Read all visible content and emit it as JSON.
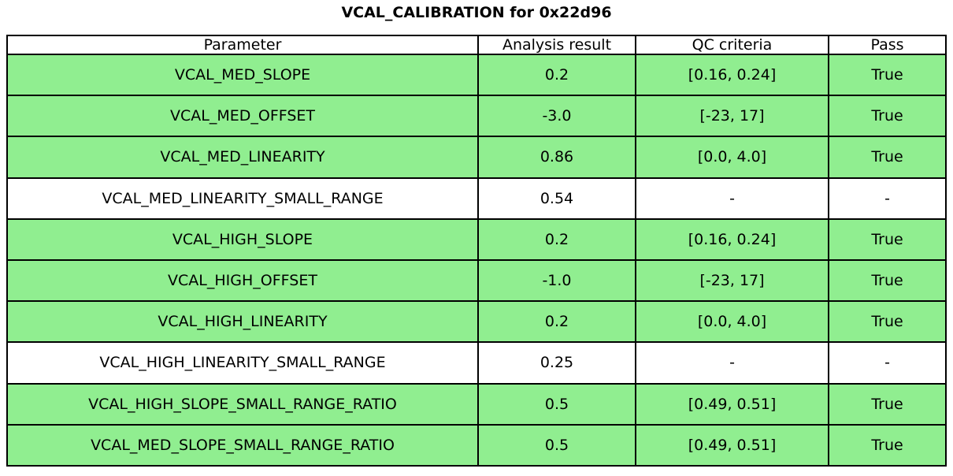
{
  "title": "VCAL_CALIBRATION for 0x22d96",
  "colors": {
    "background": "#ffffff",
    "text": "#000000",
    "border": "#000000",
    "pass_row_bg": "#90EE90",
    "neutral_row_bg": "#ffffff"
  },
  "chart_data": {
    "type": "table",
    "title": "VCAL_CALIBRATION for 0x22d96",
    "columns": [
      "Parameter",
      "Analysis result",
      "QC criteria",
      "Pass"
    ],
    "rows": [
      {
        "cells": [
          "VCAL_MED_SLOPE",
          "0.2",
          "[0.16, 0.24]",
          "True"
        ],
        "highlight": true
      },
      {
        "cells": [
          "VCAL_MED_OFFSET",
          "-3.0",
          "[-23, 17]",
          "True"
        ],
        "highlight": true
      },
      {
        "cells": [
          "VCAL_MED_LINEARITY",
          "0.86",
          "[0.0, 4.0]",
          "True"
        ],
        "highlight": true
      },
      {
        "cells": [
          "VCAL_MED_LINEARITY_SMALL_RANGE",
          "0.54",
          "-",
          "-"
        ],
        "highlight": false
      },
      {
        "cells": [
          "VCAL_HIGH_SLOPE",
          "0.2",
          "[0.16, 0.24]",
          "True"
        ],
        "highlight": true
      },
      {
        "cells": [
          "VCAL_HIGH_OFFSET",
          "-1.0",
          "[-23, 17]",
          "True"
        ],
        "highlight": true
      },
      {
        "cells": [
          "VCAL_HIGH_LINEARITY",
          "0.2",
          "[0.0, 4.0]",
          "True"
        ],
        "highlight": true
      },
      {
        "cells": [
          "VCAL_HIGH_LINEARITY_SMALL_RANGE",
          "0.25",
          "-",
          "-"
        ],
        "highlight": false
      },
      {
        "cells": [
          "VCAL_HIGH_SLOPE_SMALL_RANGE_RATIO",
          "0.5",
          "[0.49, 0.51]",
          "True"
        ],
        "highlight": true
      },
      {
        "cells": [
          "VCAL_MED_SLOPE_SMALL_RANGE_RATIO",
          "0.5",
          "[0.49, 0.51]",
          "True"
        ],
        "highlight": true
      }
    ],
    "layout": {
      "highlight_means": "QC pass (True)",
      "legend_position": "none",
      "grid": "full-cell-borders"
    }
  }
}
